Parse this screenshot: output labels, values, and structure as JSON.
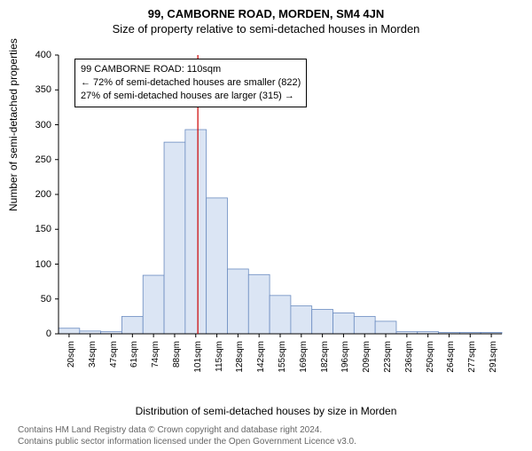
{
  "title_main": "99, CAMBORNE ROAD, MORDEN, SM4 4JN",
  "title_sub": "Size of property relative to semi-detached houses in Morden",
  "ylabel": "Number of semi-detached properties",
  "xlabel": "Distribution of semi-detached houses by size in Morden",
  "footer_line1": "Contains HM Land Registry data © Crown copyright and database right 2024.",
  "footer_line2": "Contains public sector information licensed under the Open Government Licence v3.0.",
  "info_box": {
    "line1": "99 CAMBORNE ROAD: 110sqm",
    "line2": "← 72% of semi-detached houses are smaller (822)",
    "line3": "27% of semi-detached houses are larger (315) →"
  },
  "chart": {
    "type": "histogram",
    "ylim": [
      0,
      400
    ],
    "ytick_step": 50,
    "x_categories": [
      "20sqm",
      "34sqm",
      "47sqm",
      "61sqm",
      "74sqm",
      "88sqm",
      "101sqm",
      "115sqm",
      "128sqm",
      "142sqm",
      "155sqm",
      "169sqm",
      "182sqm",
      "196sqm",
      "209sqm",
      "223sqm",
      "236sqm",
      "250sqm",
      "264sqm",
      "277sqm",
      "291sqm"
    ],
    "values": [
      8,
      4,
      3,
      25,
      84,
      275,
      293,
      195,
      93,
      85,
      55,
      40,
      35,
      30,
      25,
      18,
      3,
      3,
      2,
      2,
      2
    ],
    "bar_color": "#dbe5f4",
    "bar_border": "#6a8bc0",
    "axis_color": "#000000",
    "marker_line_color": "#cc0000",
    "marker_x_index": 6.6,
    "background_color": "#ffffff",
    "title_fontsize": 13,
    "label_fontsize": 12,
    "tick_fontsize": 11
  }
}
